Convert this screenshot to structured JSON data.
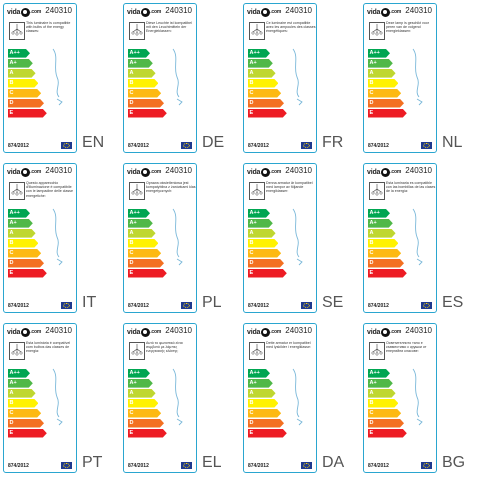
{
  "brand": {
    "prefix": "vida",
    "suffix": ".com"
  },
  "product_code": "240310",
  "regulation": "874/2012",
  "energy_classes": [
    "A++",
    "A+",
    "A",
    "B",
    "C",
    "D",
    "E"
  ],
  "class_colors": [
    "#00a651",
    "#50b848",
    "#bfd730",
    "#fff200",
    "#fdb913",
    "#f37021",
    "#ed1c24"
  ],
  "labels": [
    {
      "lang": "EN",
      "text": "This luminaire is compatible with bulbs of the energy classes:"
    },
    {
      "lang": "DE",
      "text": "Diese Leuchte ist kompatibel mit den Leuchtmitteln der Energieklassen:"
    },
    {
      "lang": "FR",
      "text": "Ce luminaire est compatible avec les ampoules des classes énergétiques:"
    },
    {
      "lang": "NL",
      "text": "Deze lamp is geschikt voor peren van de volgend energieklassen:"
    },
    {
      "lang": "IT",
      "text": "Questo apparecchio d'illuminazione è compatibile con le lampadine delle classe energetiche:"
    },
    {
      "lang": "PL",
      "text": "Oprawa oświetleniowa jest kompatybilna z żarówkami klas energetycznych:"
    },
    {
      "lang": "SE",
      "text": "Denna armatur är kompatibel med lampor av följande energiklasser:"
    },
    {
      "lang": "ES",
      "text": "Esta luminaria es compatible con las bombillas de las clases de la energía:"
    },
    {
      "lang": "PT",
      "text": "Esta luminária é compatível com bulbos das classes de energia:"
    },
    {
      "lang": "EL",
      "text": "Αυτό το φωτιστικό είναι συμβατό με λάμπες ενεργειακής κλάσης:"
    },
    {
      "lang": "DA",
      "text": "Dette armatur er kompatibel med lyskilder i energiklasse:"
    },
    {
      "lang": "BG",
      "text": "Осветителното тяло е съвместимо с крушки от енергийни класове:"
    }
  ]
}
